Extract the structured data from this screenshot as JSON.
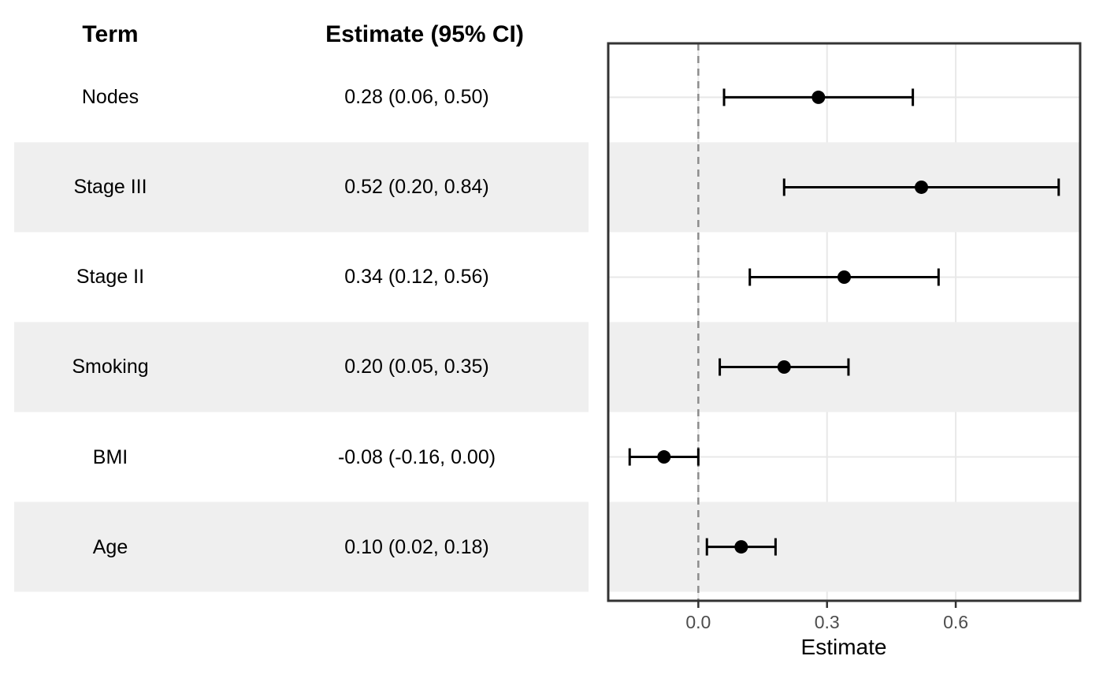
{
  "table": {
    "header": {
      "term": "Term",
      "estimate": "Estimate (95% CI)"
    },
    "rows": [
      {
        "term": "Nodes",
        "estimate_ci": "0.28 (0.06, 0.50)"
      },
      {
        "term": "Stage III",
        "estimate_ci": "0.52 (0.20, 0.84)"
      },
      {
        "term": "Stage II",
        "estimate_ci": "0.34 (0.12, 0.56)"
      },
      {
        "term": "Smoking",
        "estimate_ci": "0.20 (0.05, 0.35)"
      },
      {
        "term": "BMI",
        "estimate_ci": "-0.08 (-0.16, 0.00)"
      },
      {
        "term": "Age",
        "estimate_ci": "0.10 (0.02, 0.18)"
      }
    ]
  },
  "chart_data": {
    "type": "scatter",
    "subtype": "horizontal-forest-plot-with-error-bars",
    "categories": [
      "Nodes",
      "Stage III",
      "Stage II",
      "Smoking",
      "BMI",
      "Age"
    ],
    "series": [
      {
        "name": "Estimate",
        "values": [
          0.28,
          0.52,
          0.34,
          0.2,
          -0.08,
          0.1
        ],
        "ci_low": [
          0.06,
          0.2,
          0.12,
          0.05,
          -0.16,
          0.02
        ],
        "ci_high": [
          0.5,
          0.84,
          0.56,
          0.35,
          0.0,
          0.18
        ]
      }
    ],
    "title": "",
    "xlabel": "Estimate",
    "ylabel": "",
    "xlim": [
      -0.21,
      0.89
    ],
    "x_ticks": [
      0.0,
      0.3,
      0.6
    ],
    "x_tick_labels": [
      "0.0",
      "0.3",
      "0.6"
    ],
    "reference_line_x": 0.0,
    "grid": true,
    "legend": false,
    "striped_row_indices": [
      1,
      3,
      5
    ]
  },
  "colors": {
    "background": "#FFFFFF",
    "stripe_band": "#EFEFEF",
    "gridline": "#E8E8E8",
    "panel_border": "#333333",
    "reference_line": "#8C8C8C",
    "marker": "#000000",
    "error_bar": "#000000",
    "axis_tick_text": "#4D4D4D",
    "table_text": "#000000"
  }
}
